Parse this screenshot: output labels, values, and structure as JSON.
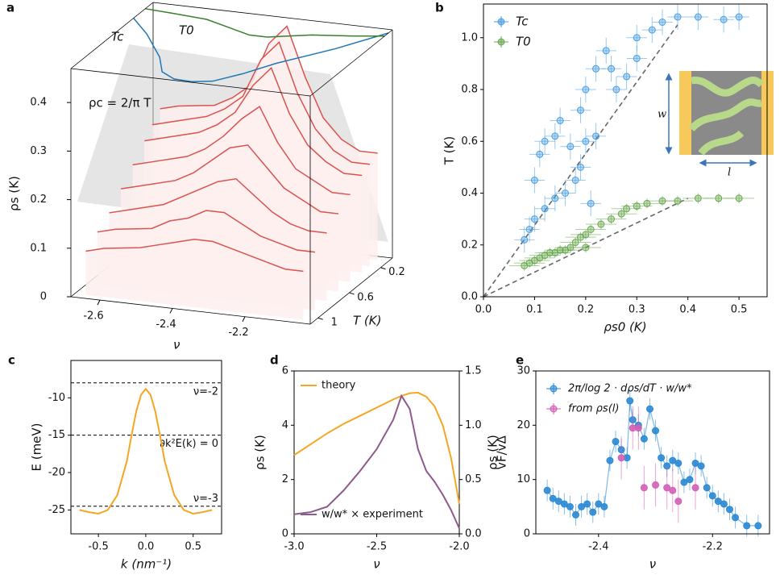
{
  "chart_data": [
    {
      "type": "waterfall3d",
      "panel": "a",
      "xlabel": "ν",
      "ylabel": "T (K)",
      "zlabel": "ρs (K)",
      "annotation": "ρc = 2/π T",
      "xlim": [
        -2.68,
        -2.02
      ],
      "ylim": [
        1.1,
        0.05
      ],
      "zlim": [
        0,
        0.47
      ],
      "xticks": [
        -2.6,
        -2.4,
        -2.2
      ],
      "yticks": [
        0.2,
        0.6,
        1
      ],
      "zticks": [
        0,
        0.1,
        0.2,
        0.3,
        0.4
      ],
      "color": "#d9534f",
      "x": [
        -2.65,
        -2.6,
        -2.5,
        -2.45,
        -2.4,
        -2.35,
        -2.3,
        -2.25,
        -2.2,
        -2.15,
        -2.1,
        -2.05
      ],
      "curves": [
        {
          "T": 0.1,
          "values": [
            0.26,
            0.27,
            0.28,
            0.3,
            0.33,
            0.42,
            0.46,
            0.36,
            0.28,
            0.24,
            0.22,
            0.22
          ]
        },
        {
          "T": 0.2,
          "values": [
            0.24,
            0.25,
            0.27,
            0.29,
            0.32,
            0.4,
            0.44,
            0.34,
            0.27,
            0.23,
            0.21,
            0.21
          ]
        },
        {
          "T": 0.3,
          "values": [
            0.22,
            0.23,
            0.25,
            0.27,
            0.3,
            0.36,
            0.4,
            0.31,
            0.25,
            0.22,
            0.2,
            0.2
          ]
        },
        {
          "T": 0.45,
          "values": [
            0.19,
            0.2,
            0.22,
            0.24,
            0.27,
            0.31,
            0.34,
            0.27,
            0.22,
            0.2,
            0.18,
            0.18
          ]
        },
        {
          "T": 0.6,
          "values": [
            0.16,
            0.17,
            0.19,
            0.21,
            0.24,
            0.27,
            0.28,
            0.24,
            0.2,
            0.18,
            0.16,
            0.16
          ]
        },
        {
          "T": 0.75,
          "values": [
            0.13,
            0.14,
            0.16,
            0.18,
            0.2,
            0.22,
            0.23,
            0.2,
            0.17,
            0.15,
            0.14,
            0.14
          ]
        },
        {
          "T": 0.9,
          "values": [
            0.11,
            0.12,
            0.13,
            0.15,
            0.16,
            0.18,
            0.18,
            0.16,
            0.14,
            0.13,
            0.12,
            0.12
          ]
        },
        {
          "T": 1.05,
          "values": [
            0.09,
            0.1,
            0.11,
            0.12,
            0.13,
            0.14,
            0.14,
            0.13,
            0.12,
            0.11,
            0.1,
            0.1
          ]
        }
      ],
      "lines": [
        {
          "name": "Tc",
          "color": "#1f77b4",
          "x": [
            -2.68,
            -2.6,
            -2.5,
            -2.45,
            -2.4,
            -2.35,
            -2.3,
            -2.25,
            -2.2,
            -2.1,
            -2.02
          ],
          "values": [
            0.3,
            0.5,
            0.8,
            1.0,
            1.08,
            1.09,
            1.05,
            0.9,
            0.7,
            0.4,
            0.1
          ]
        },
        {
          "name": "T0",
          "color": "#3a7d2c",
          "x": [
            -2.68,
            -2.6,
            -2.5,
            -2.45,
            -2.4,
            -2.35,
            -2.3,
            -2.25,
            -2.2,
            -2.1,
            -2.02
          ],
          "values": [
            0.15,
            0.17,
            0.2,
            0.25,
            0.3,
            0.35,
            0.35,
            0.3,
            0.25,
            0.2,
            0.15
          ]
        }
      ]
    },
    {
      "type": "scatter",
      "panel": "b",
      "xlabel": "ρs0 (K)",
      "ylabel": "T (K)",
      "xlim": [
        0,
        0.555
      ],
      "ylim": [
        0,
        1.13
      ],
      "xticks": [
        {
          "value": 0,
          "label": "0.0"
        },
        0.1,
        0.2,
        0.3,
        0.4,
        0.5
      ],
      "yticks": [
        {
          "value": 0,
          "label": "0.0"
        },
        0.2,
        0.4,
        0.6,
        0.8,
        {
          "value": 1,
          "label": "1.0"
        }
      ],
      "series": [
        {
          "name": "Tc",
          "color": "#4a9fe0",
          "xerr": 0.02,
          "yerr": 0.05,
          "x": [
            0.08,
            0.09,
            0.1,
            0.1,
            0.11,
            0.12,
            0.12,
            0.14,
            0.14,
            0.15,
            0.16,
            0.17,
            0.18,
            0.19,
            0.19,
            0.2,
            0.21,
            0.22,
            0.2,
            0.22,
            0.24,
            0.25,
            0.26,
            0.28,
            0.3,
            0.3,
            0.33,
            0.35,
            0.38,
            0.42,
            0.47,
            0.5
          ],
          "values": [
            0.22,
            0.26,
            0.3,
            0.45,
            0.55,
            0.6,
            0.34,
            0.62,
            0.38,
            0.68,
            0.4,
            0.58,
            0.45,
            0.5,
            0.72,
            0.6,
            0.36,
            0.62,
            0.8,
            0.88,
            0.95,
            0.88,
            0.8,
            0.85,
            0.92,
            1.0,
            1.03,
            1.06,
            1.08,
            1.08,
            1.07,
            1.08
          ]
        },
        {
          "name": "T0",
          "color": "#6aa84f",
          "xerr": 0.03,
          "yerr": 0.02,
          "x": [
            0.08,
            0.09,
            0.1,
            0.11,
            0.12,
            0.13,
            0.14,
            0.15,
            0.16,
            0.17,
            0.18,
            0.19,
            0.2,
            0.2,
            0.21,
            0.23,
            0.25,
            0.27,
            0.28,
            0.3,
            0.32,
            0.35,
            0.38,
            0.42,
            0.46,
            0.5
          ],
          "values": [
            0.12,
            0.13,
            0.14,
            0.15,
            0.16,
            0.17,
            0.17,
            0.18,
            0.18,
            0.19,
            0.21,
            0.23,
            0.24,
            0.19,
            0.26,
            0.28,
            0.3,
            0.32,
            0.34,
            0.35,
            0.36,
            0.37,
            0.37,
            0.38,
            0.38,
            0.38
          ]
        }
      ],
      "ref_lines": [
        {
          "x": [
            0,
            0.38
          ],
          "values": [
            0,
            1.05
          ]
        },
        {
          "x": [
            0,
            0.4
          ],
          "values": [
            0,
            0.38
          ]
        }
      ],
      "inset": {
        "w_label": "w",
        "l_label": "l"
      }
    },
    {
      "type": "line",
      "panel": "c",
      "xlabel": "k (nm⁻¹)",
      "ylabel": "E (meV)",
      "xlim": [
        -0.79,
        0.8
      ],
      "ylim": [
        -28.2,
        -5.0
      ],
      "xticks": [
        -0.5,
        {
          "value": 0,
          "label": "0.0"
        },
        0.5
      ],
      "yticks": [
        -10,
        -15,
        -20,
        -25
      ],
      "x": [
        -0.7,
        -0.6,
        -0.5,
        -0.4,
        -0.3,
        -0.2,
        -0.15,
        -0.1,
        -0.05,
        0,
        0.05,
        0.1,
        0.15,
        0.2,
        0.3,
        0.4,
        0.5,
        0.6,
        0.7
      ],
      "series": [
        {
          "color": "#f5a623",
          "values": [
            -25,
            -25.3,
            -25.5,
            -25,
            -23,
            -18.5,
            -15,
            -11.8,
            -9.6,
            -8.8,
            -9.6,
            -11.8,
            -15,
            -18.5,
            -23,
            -25,
            -25.5,
            -25.3,
            -25
          ]
        }
      ],
      "hlines": [
        {
          "value": -8,
          "label": "ν=-2"
        },
        {
          "value": -15,
          "label": "∂k²E(k) = 0"
        },
        {
          "value": -24.5,
          "label": "ν=-3"
        }
      ]
    },
    {
      "type": "line",
      "panel": "d",
      "xlabel": "ν",
      "ylabel": "ρs (K)",
      "y2label": "ρs (K)",
      "xlim": [
        -3,
        -2
      ],
      "ylim": [
        0,
        6
      ],
      "y2lim": [
        0,
        1.5
      ],
      "xticks": [
        {
          "value": -3,
          "label": "-3.0"
        },
        -2.5,
        {
          "value": -2,
          "label": "-2.0"
        }
      ],
      "yticks": [
        0,
        2,
        4,
        6
      ],
      "y2ticks": [
        {
          "value": 0,
          "label": "0.0"
        },
        0.5,
        {
          "value": 1,
          "label": "1.0"
        },
        1.5
      ],
      "x": [
        -3,
        -2.9,
        -2.8,
        -2.7,
        -2.6,
        -2.5,
        -2.4,
        -2.35,
        -2.3,
        -2.25,
        -2.2,
        -2.15,
        -2.1,
        -2.05,
        -2
      ],
      "series": [
        {
          "name": "theory",
          "color": "#f5a623",
          "values": [
            2.9,
            3.3,
            3.7,
            4.05,
            4.35,
            4.65,
            4.95,
            5.08,
            5.18,
            5.2,
            5.05,
            4.7,
            4.0,
            2.8,
            1.1
          ]
        },
        {
          "name": "w/w* × experiment",
          "color": "#8e5a8e",
          "axis": "y2",
          "values": [
            0.18,
            0.2,
            0.25,
            0.4,
            0.58,
            0.78,
            1.05,
            1.27,
            1.15,
            0.78,
            0.58,
            0.48,
            0.36,
            0.22,
            0.05
          ]
        }
      ]
    },
    {
      "type": "scatter",
      "panel": "e",
      "xlabel": "ν",
      "ylabel": "vF/vΔ",
      "xlim": [
        -2.51,
        -2.1
      ],
      "ylim": [
        0,
        30
      ],
      "xticks": [
        -2.4,
        -2.2
      ],
      "yticks": [
        0,
        10,
        20,
        30
      ],
      "series": [
        {
          "name": "2π/log 2 · dρs/dT · w/w*",
          "color": "#2a8ad4",
          "yerr": 2,
          "line": true,
          "x": [
            -2.49,
            -2.48,
            -2.47,
            -2.46,
            -2.45,
            -2.44,
            -2.43,
            -2.42,
            -2.41,
            -2.4,
            -2.39,
            -2.38,
            -2.37,
            -2.36,
            -2.35,
            -2.345,
            -2.34,
            -2.33,
            -2.32,
            -2.31,
            -2.3,
            -2.29,
            -2.28,
            -2.27,
            -2.26,
            -2.25,
            -2.24,
            -2.23,
            -2.22,
            -2.21,
            -2.2,
            -2.19,
            -2.18,
            -2.17,
            -2.16,
            -2.14,
            -2.12
          ],
          "values": [
            8,
            6.5,
            6,
            5.5,
            5,
            3.5,
            5,
            5.5,
            4,
            5.5,
            5,
            13.5,
            17,
            15.5,
            14,
            24.5,
            21,
            20,
            17.5,
            23,
            19,
            14,
            12.5,
            13.5,
            13,
            9.5,
            10,
            13,
            12.5,
            8.5,
            7,
            6,
            5.5,
            4.5,
            3,
            1.5,
            1.5
          ]
        },
        {
          "name": "from ρs(l)",
          "color": "#d35fb7",
          "yerr": 4,
          "x": [
            -2.36,
            -2.34,
            -2.33,
            -2.32,
            -2.3,
            -2.28,
            -2.27,
            -2.26,
            -2.23
          ],
          "values": [
            14,
            19.5,
            19.5,
            8.5,
            9,
            8.5,
            8,
            6,
            8.5
          ]
        }
      ]
    }
  ]
}
